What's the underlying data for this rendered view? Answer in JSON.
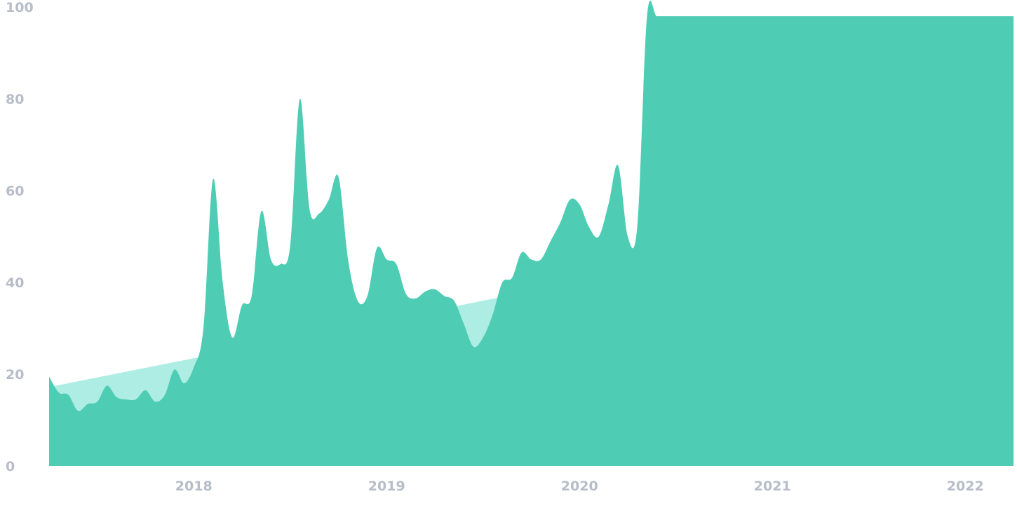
{
  "chart_data": {
    "type": "area",
    "title": "",
    "xlabel": "",
    "ylabel": "",
    "ylim": [
      0,
      100
    ],
    "xlim": [
      2017.25,
      2022.25
    ],
    "y_ticks": [
      "0",
      "20",
      "40",
      "60",
      "80",
      "100"
    ],
    "x_ticks": [
      {
        "label": "2018",
        "x": 2018
      },
      {
        "label": "2019",
        "x": 2019
      },
      {
        "label": "2020",
        "x": 2020
      },
      {
        "label": "2021",
        "x": 2021
      },
      {
        "label": "2022",
        "x": 2022
      }
    ],
    "grid": false,
    "legend": "none",
    "colors": {
      "series": "#4ecdb4",
      "trend": "#aeede3",
      "tick_text": "#b7bdc8"
    },
    "series": [
      {
        "values_x": [
          2017.25,
          2017.3,
          2017.35,
          2017.4,
          2017.45,
          2017.5,
          2017.55,
          2017.6,
          2017.65,
          2017.7,
          2017.75,
          2017.8,
          2017.85,
          2017.9,
          2017.95,
          2018.0,
          2018.05,
          2018.1,
          2018.15,
          2018.2,
          2018.25,
          2018.3,
          2018.35,
          2018.4,
          2018.45,
          2018.5,
          2018.55,
          2018.6,
          2018.65,
          2018.7,
          2018.75,
          2018.8,
          2018.85,
          2018.9,
          2018.95,
          2019.0,
          2019.05,
          2019.1,
          2019.15,
          2019.2,
          2019.25,
          2019.3,
          2019.35,
          2019.4,
          2019.45,
          2019.5,
          2019.55,
          2019.6,
          2019.65,
          2019.7,
          2019.75,
          2019.8,
          2019.85,
          2019.9,
          2019.95,
          2020.0,
          2020.05,
          2020.1,
          2020.15,
          2020.2,
          2020.25,
          2020.3,
          2020.35,
          2020.4,
          2020.45,
          2020.5,
          2020.55,
          2020.6,
          2020.65,
          2020.7,
          2020.75,
          2020.8,
          2020.85,
          2020.9,
          2020.95,
          2021.0,
          2021.05,
          2021.1,
          2021.15,
          2021.2,
          2021.25,
          2021.3,
          2021.35,
          2021.4,
          2021.45,
          2021.5,
          2021.55,
          2021.6,
          2021.65,
          2021.7,
          2021.75,
          2021.8,
          2021.85,
          2021.9,
          2021.95,
          2022.0,
          2022.05,
          2022.1,
          2022.15,
          2022.2,
          2022.25
        ],
        "values_y": [
          19.5,
          16,
          15.5,
          12,
          13.5,
          14,
          17.5,
          15,
          14.5,
          14.5,
          16.5,
          14,
          15.5,
          21,
          18,
          21.5,
          30,
          62.5,
          40,
          28,
          35,
          37,
          55.5,
          45,
          44,
          48,
          80,
          56,
          55,
          58,
          63,
          45,
          36,
          37,
          47.5,
          45,
          44,
          37.5,
          36.5,
          38,
          38.5,
          37,
          36,
          31,
          26,
          28,
          33,
          40,
          41,
          46.5,
          45,
          45,
          49,
          53,
          58,
          57,
          52,
          50,
          57,
          65.5,
          50,
          52.5,
          98,
          98,
          98,
          98,
          98,
          98,
          98,
          98,
          98,
          98,
          98,
          98,
          98,
          98,
          98,
          98,
          98,
          98,
          98,
          98,
          98,
          98,
          98,
          98,
          98,
          98,
          98,
          98,
          98,
          98,
          98,
          98,
          98,
          98,
          98,
          98,
          98,
          98,
          98
        ]
      }
    ],
    "trend": {
      "start": [
        2017.25,
        17.2
      ],
      "end": [
        2022.25,
        59
      ]
    }
  }
}
